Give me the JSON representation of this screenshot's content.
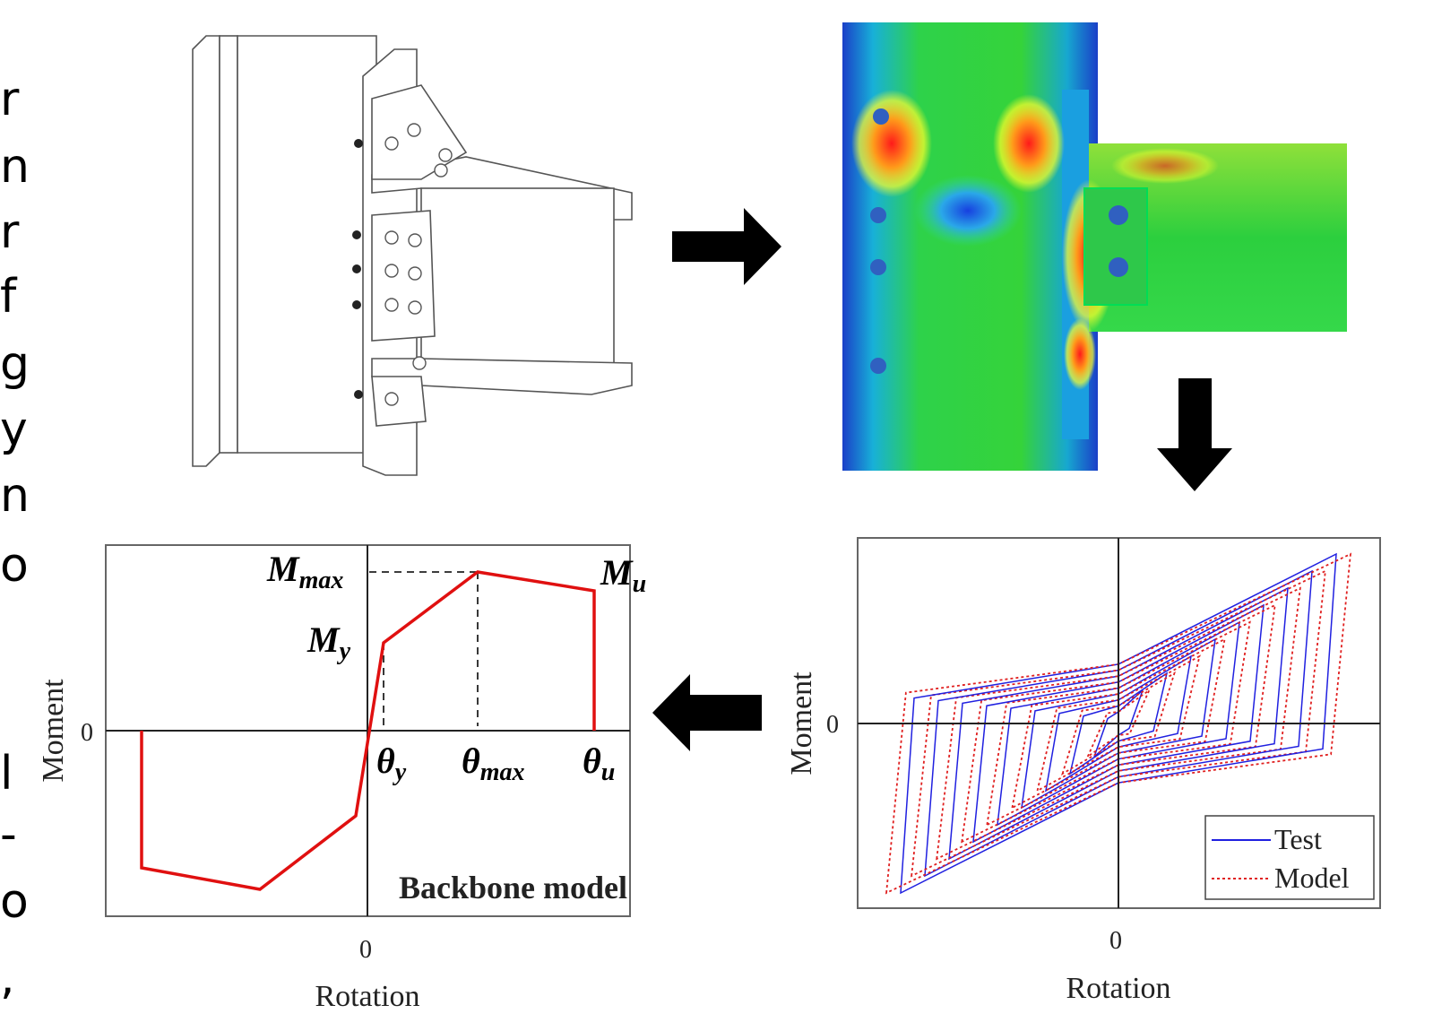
{
  "side_text": [
    "r",
    "n",
    "r",
    "f",
    "g",
    "y",
    "n",
    "o",
    "l",
    "-",
    "o",
    ","
  ],
  "backbone": {
    "m_max": {
      "main": "M",
      "sub": "max"
    },
    "m_y": {
      "main": "M",
      "sub": "y"
    },
    "m_u": {
      "main": "M",
      "sub": "u"
    },
    "theta_y": {
      "main": "θ",
      "sub": "y"
    },
    "theta_max": {
      "main": "θ",
      "sub": "max"
    },
    "theta_u": {
      "main": "θ",
      "sub": "u"
    },
    "title": "Backbone model",
    "y_label": "Moment",
    "x_label": "Rotation",
    "y_zero": "0",
    "x_zero": "0"
  },
  "hysteresis": {
    "y_label": "Moment",
    "x_label": "Rotation",
    "y_zero": "0",
    "x_zero": "0",
    "legend": [
      "Test",
      "Model"
    ]
  }
}
